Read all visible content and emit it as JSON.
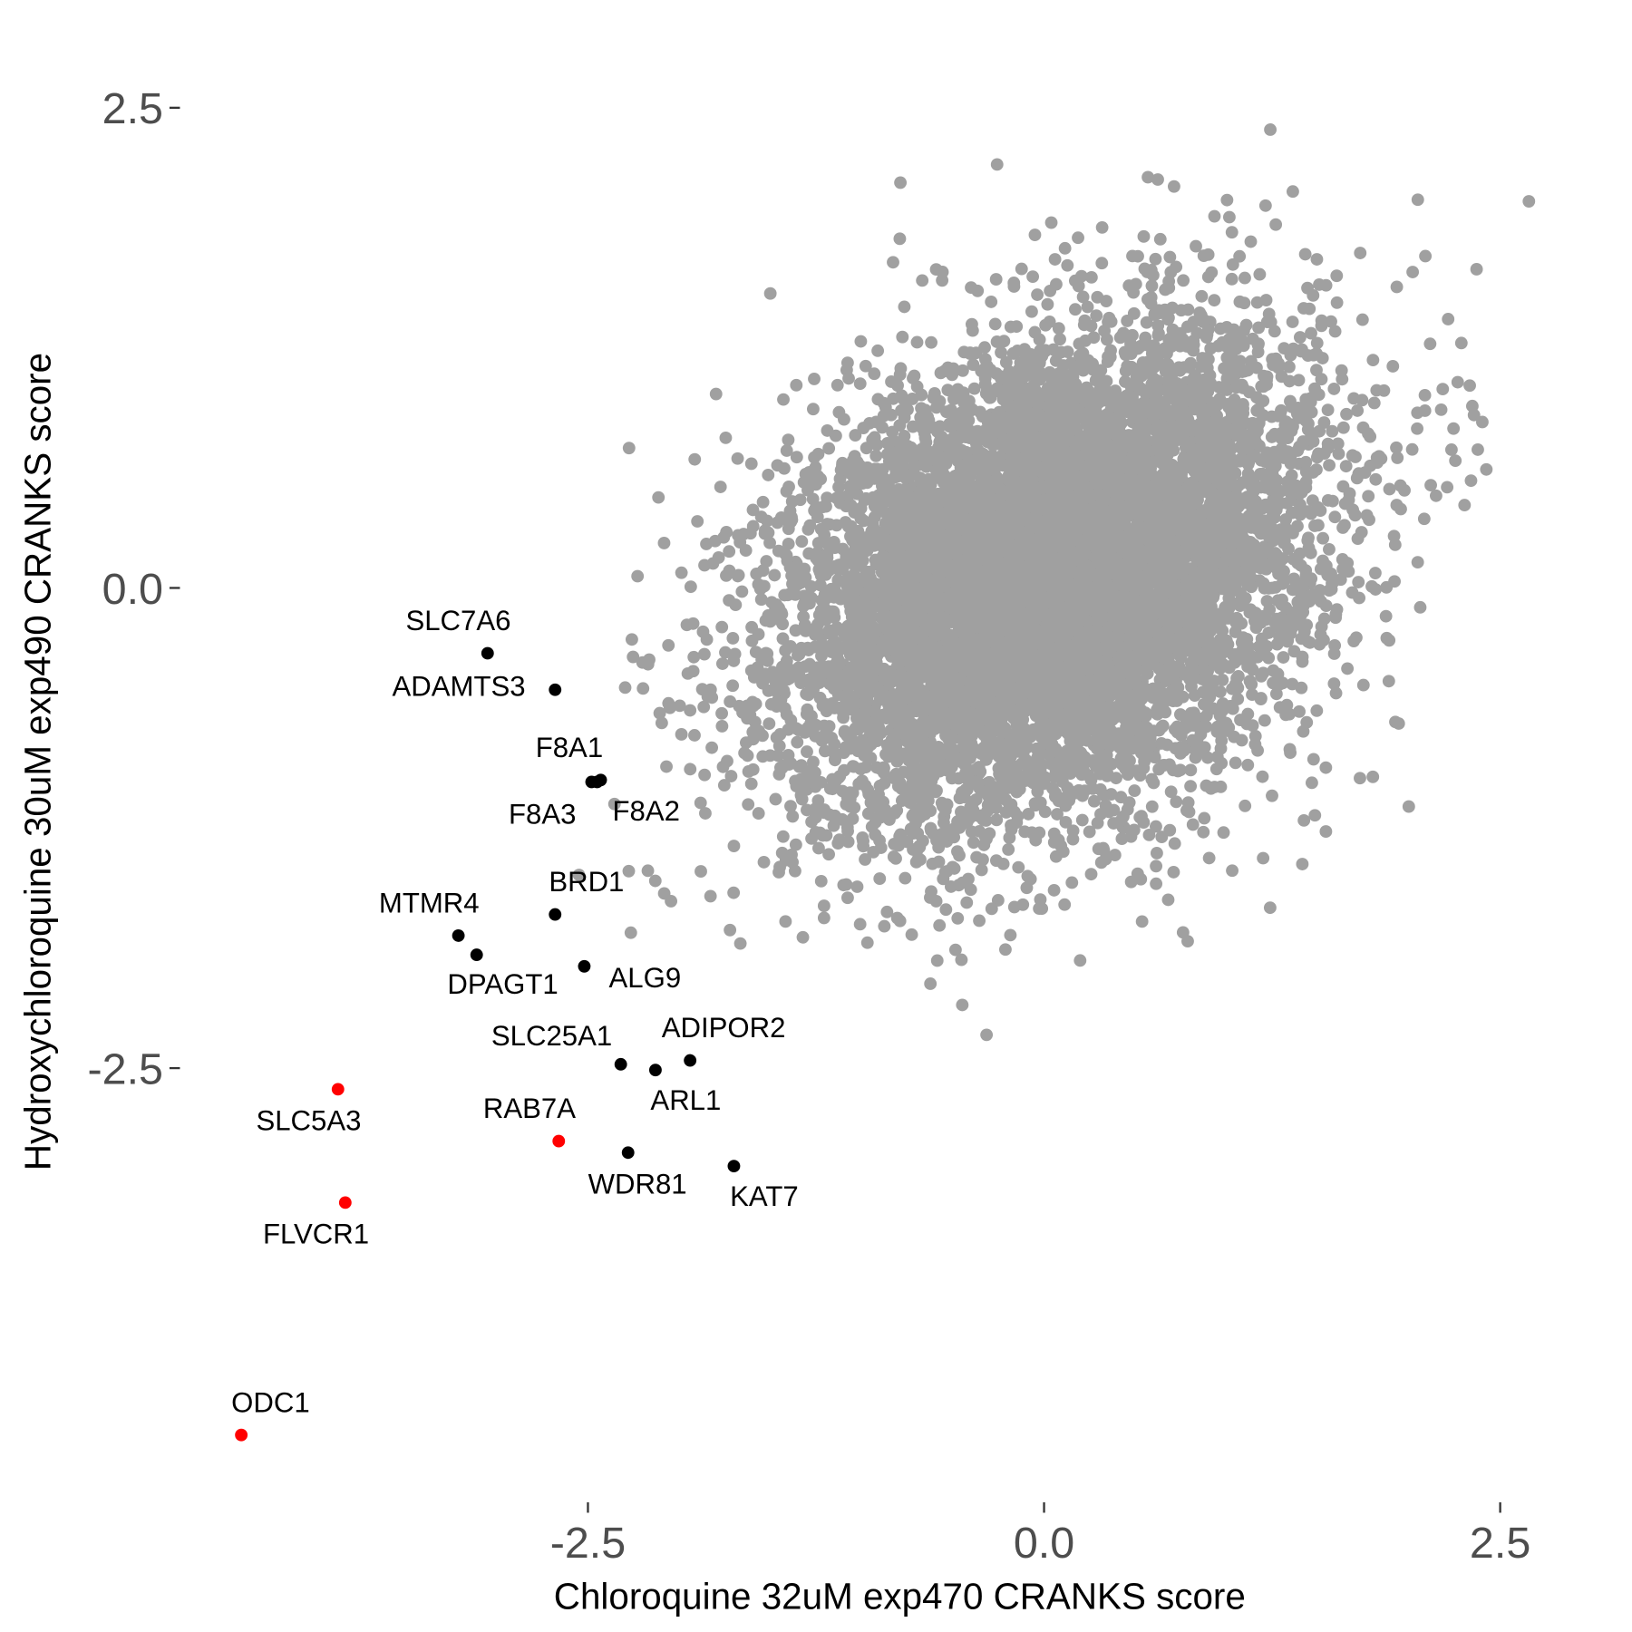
{
  "chart_data": {
    "type": "scatter",
    "xlabel": "Chloroquine 32uM exp470 CRANKS score",
    "ylabel": "Hydroxychloroquine 30uM exp490 CRANKS score",
    "x_ticks": [
      "-2.5",
      "0.0",
      "2.5"
    ],
    "y_ticks": [
      "2.5",
      "0.0",
      "-2.5"
    ],
    "x_tick_values": [
      -2.5,
      0,
      2.5
    ],
    "y_tick_values": [
      2.5,
      0,
      -2.5
    ],
    "xlim": [
      -4.5,
      2.8
    ],
    "ylim": [
      -4.6,
      2.6
    ],
    "grid": false,
    "colors": {
      "background_points": "#A0A0A0",
      "highlight": "#000000",
      "red_highlight": "#FF0000",
      "tick_text": "#4D4D4D"
    },
    "background_cloud": {
      "center": [
        0.05,
        0.05
      ],
      "sd": [
        0.72,
        0.62
      ],
      "correlation": 0.3
    },
    "labeled_points": [
      {
        "label": "SLC7A6",
        "x": -3.05,
        "y": -0.34,
        "color": "black"
      },
      {
        "label": "ADAMTS3",
        "x": -2.68,
        "y": -0.53,
        "color": "black"
      },
      {
        "label": "F8A1",
        "x": -2.43,
        "y": -1.0,
        "color": "black"
      },
      {
        "label": "F8A2",
        "x": -2.45,
        "y": -1.01,
        "color": "black"
      },
      {
        "label": "F8A3",
        "x": -2.48,
        "y": -1.01,
        "color": "black"
      },
      {
        "label": "BRD1",
        "x": -2.68,
        "y": -1.7,
        "color": "black"
      },
      {
        "label": "MTMR4",
        "x": -3.21,
        "y": -1.81,
        "color": "black"
      },
      {
        "label": "DPAGT1",
        "x": -3.11,
        "y": -1.91,
        "color": "black"
      },
      {
        "label": "ALG9",
        "x": -2.52,
        "y": -1.97,
        "color": "black"
      },
      {
        "label": "SLC25A1",
        "x": -2.32,
        "y": -2.48,
        "color": "black"
      },
      {
        "label": "ARL1",
        "x": -2.13,
        "y": -2.51,
        "color": "black"
      },
      {
        "label": "ADIPOR2",
        "x": -1.94,
        "y": -2.46,
        "color": "black"
      },
      {
        "label": "RAB7A",
        "x": -2.66,
        "y": -2.88,
        "color": "red"
      },
      {
        "label": "WDR81",
        "x": -2.28,
        "y": -2.94,
        "color": "black"
      },
      {
        "label": "KAT7",
        "x": -1.7,
        "y": -3.01,
        "color": "black"
      },
      {
        "label": "SLC5A3",
        "x": -3.87,
        "y": -2.61,
        "color": "red"
      },
      {
        "label": "FLVCR1",
        "x": -3.83,
        "y": -3.2,
        "color": "red"
      },
      {
        "label": "ODC1",
        "x": -4.4,
        "y": -4.41,
        "color": "red"
      }
    ]
  }
}
